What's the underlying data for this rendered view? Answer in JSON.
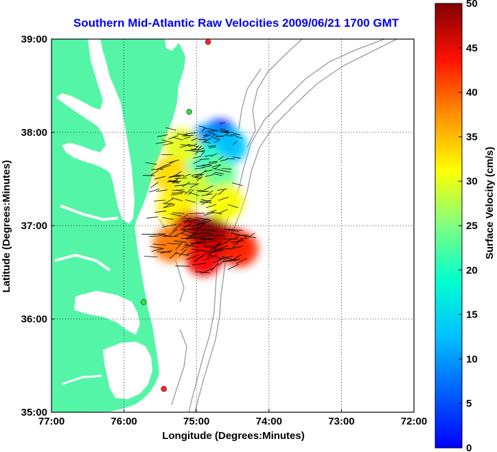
{
  "title": "Southern Mid-Atlantic Raw Velocities 2009/06/21 1700 GMT",
  "x_axis": {
    "label": "Longitude (Degrees:Minutes)",
    "ticks": [
      "77:00",
      "76:00",
      "75:00",
      "74:00",
      "73:00",
      "72:00"
    ]
  },
  "y_axis": {
    "label": "Latitude (Degrees:Minutes)",
    "ticks": [
      "39:00",
      "38:00",
      "37:00",
      "36:00",
      "35:00"
    ]
  },
  "colorbar": {
    "label": "Surface Velocity (cm/s)",
    "ticks": [
      "50",
      "45",
      "40",
      "35",
      "30",
      "25",
      "20",
      "15",
      "10",
      "5",
      "0"
    ],
    "min": 0,
    "max": 50,
    "colormap": "jet"
  },
  "colors": {
    "land": "#55f5a8",
    "water": "#ffffff",
    "bathymetry": "#999999",
    "station": "#ff2222",
    "station_alt": "#33dd44",
    "title": "#0000ee"
  },
  "chart_data": {
    "type": "map",
    "xlim": [
      -77,
      -72
    ],
    "ylim": [
      35,
      39
    ],
    "grid": "dotted",
    "stations": [
      {
        "lon": -74.84,
        "lat": 38.97,
        "status": "red"
      },
      {
        "lon": -75.1,
        "lat": 38.22,
        "status": "green"
      },
      {
        "lon": -75.73,
        "lat": 36.18,
        "status": "green"
      },
      {
        "lon": -75.45,
        "lat": 35.25,
        "status": "red"
      }
    ],
    "velocity_field": {
      "units": "cm/s",
      "regions": [
        {
          "lon": -74.68,
          "lat": 37.95,
          "speed": 8
        },
        {
          "lon": -74.85,
          "lat": 37.9,
          "speed": 14
        },
        {
          "lon": -74.55,
          "lat": 37.85,
          "speed": 16
        },
        {
          "lon": -74.9,
          "lat": 37.7,
          "speed": 21
        },
        {
          "lon": -75.2,
          "lat": 37.85,
          "speed": 30
        },
        {
          "lon": -75.35,
          "lat": 37.55,
          "speed": 33
        },
        {
          "lon": -74.7,
          "lat": 37.55,
          "speed": 24
        },
        {
          "lon": -75.05,
          "lat": 37.4,
          "speed": 29
        },
        {
          "lon": -75.3,
          "lat": 37.2,
          "speed": 32
        },
        {
          "lon": -74.6,
          "lat": 37.25,
          "speed": 31
        },
        {
          "lon": -75.1,
          "lat": 36.95,
          "speed": 46
        },
        {
          "lon": -74.8,
          "lat": 36.9,
          "speed": 50
        },
        {
          "lon": -74.55,
          "lat": 36.8,
          "speed": 48
        },
        {
          "lon": -74.9,
          "lat": 36.65,
          "speed": 44
        },
        {
          "lon": -74.4,
          "lat": 36.75,
          "speed": 42
        },
        {
          "lon": -75.35,
          "lat": 36.8,
          "speed": 38
        }
      ]
    }
  }
}
